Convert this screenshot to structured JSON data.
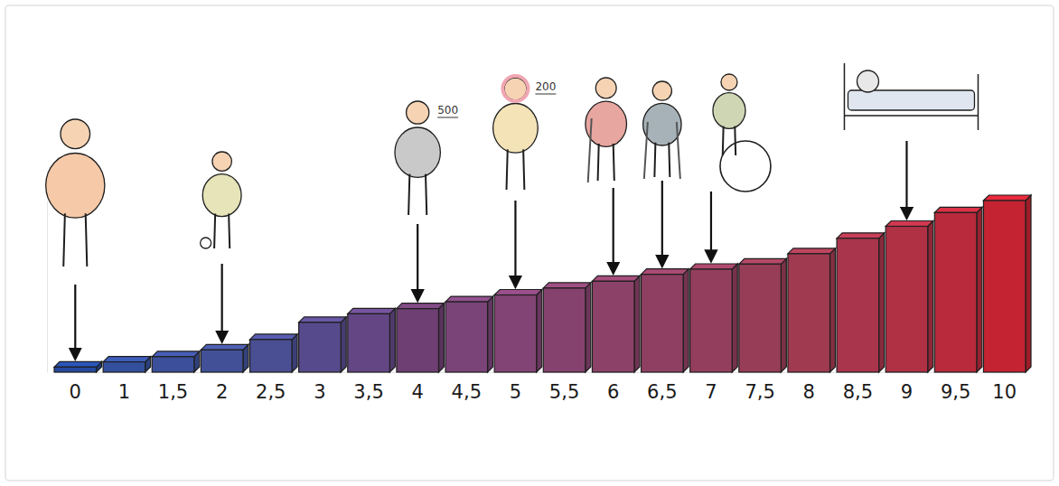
{
  "chart_data": {
    "type": "bar",
    "categories": [
      "0",
      "1",
      "1,5",
      "2",
      "2,5",
      "3",
      "3,5",
      "4",
      "4,5",
      "5",
      "5,5",
      "6",
      "6,5",
      "7",
      "7,5",
      "8",
      "8,5",
      "9",
      "9,5",
      "10"
    ],
    "values": [
      0.3,
      0.6,
      0.9,
      1.3,
      1.9,
      2.9,
      3.4,
      3.7,
      4.1,
      4.5,
      4.9,
      5.3,
      5.7,
      6.0,
      6.3,
      6.9,
      7.8,
      8.5,
      9.3,
      10
    ],
    "colors": [
      "#24489e",
      "#344f9d",
      "#3b4f9a",
      "#415097",
      "#4a4e93",
      "#574a8c",
      "#644684",
      "#6e3f72",
      "#7a4478",
      "#824474",
      "#86426e",
      "#8b4168",
      "#8f4062",
      "#933e5c",
      "#973d57",
      "#a03a51",
      "#a8354b",
      "#b03044",
      "#b82a3c",
      "#c42332"
    ],
    "ylim": [
      0,
      10
    ],
    "tick_labels": "x",
    "annotations": [
      {
        "category": "0"
      },
      {
        "category": "2"
      },
      {
        "category": "4",
        "text": "500"
      },
      {
        "category": "5",
        "text": "200"
      },
      {
        "category": "6"
      },
      {
        "category": "6,5"
      },
      {
        "category": "7"
      },
      {
        "category": "9"
      }
    ]
  }
}
